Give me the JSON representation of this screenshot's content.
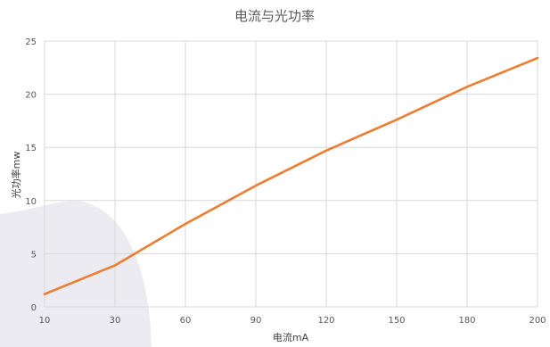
{
  "chart_data": {
    "type": "line",
    "title": "电流与光功率",
    "xlabel": "电流mA",
    "ylabel": "光功率mw",
    "x": [
      10,
      30,
      60,
      90,
      120,
      150,
      180,
      200
    ],
    "x_ticks": [
      "10",
      "30",
      "60",
      "90",
      "120",
      "150",
      "180",
      "200"
    ],
    "y_ticks": [
      "0",
      "5",
      "10",
      "15",
      "20",
      "25"
    ],
    "ylim": [
      0,
      25
    ],
    "grid": true,
    "legend": "none",
    "series": [
      {
        "values": [
          1.2,
          3.9,
          7.8,
          11.4,
          14.7,
          17.6,
          20.7,
          23.4
        ],
        "color": "#ed7d31"
      }
    ]
  }
}
